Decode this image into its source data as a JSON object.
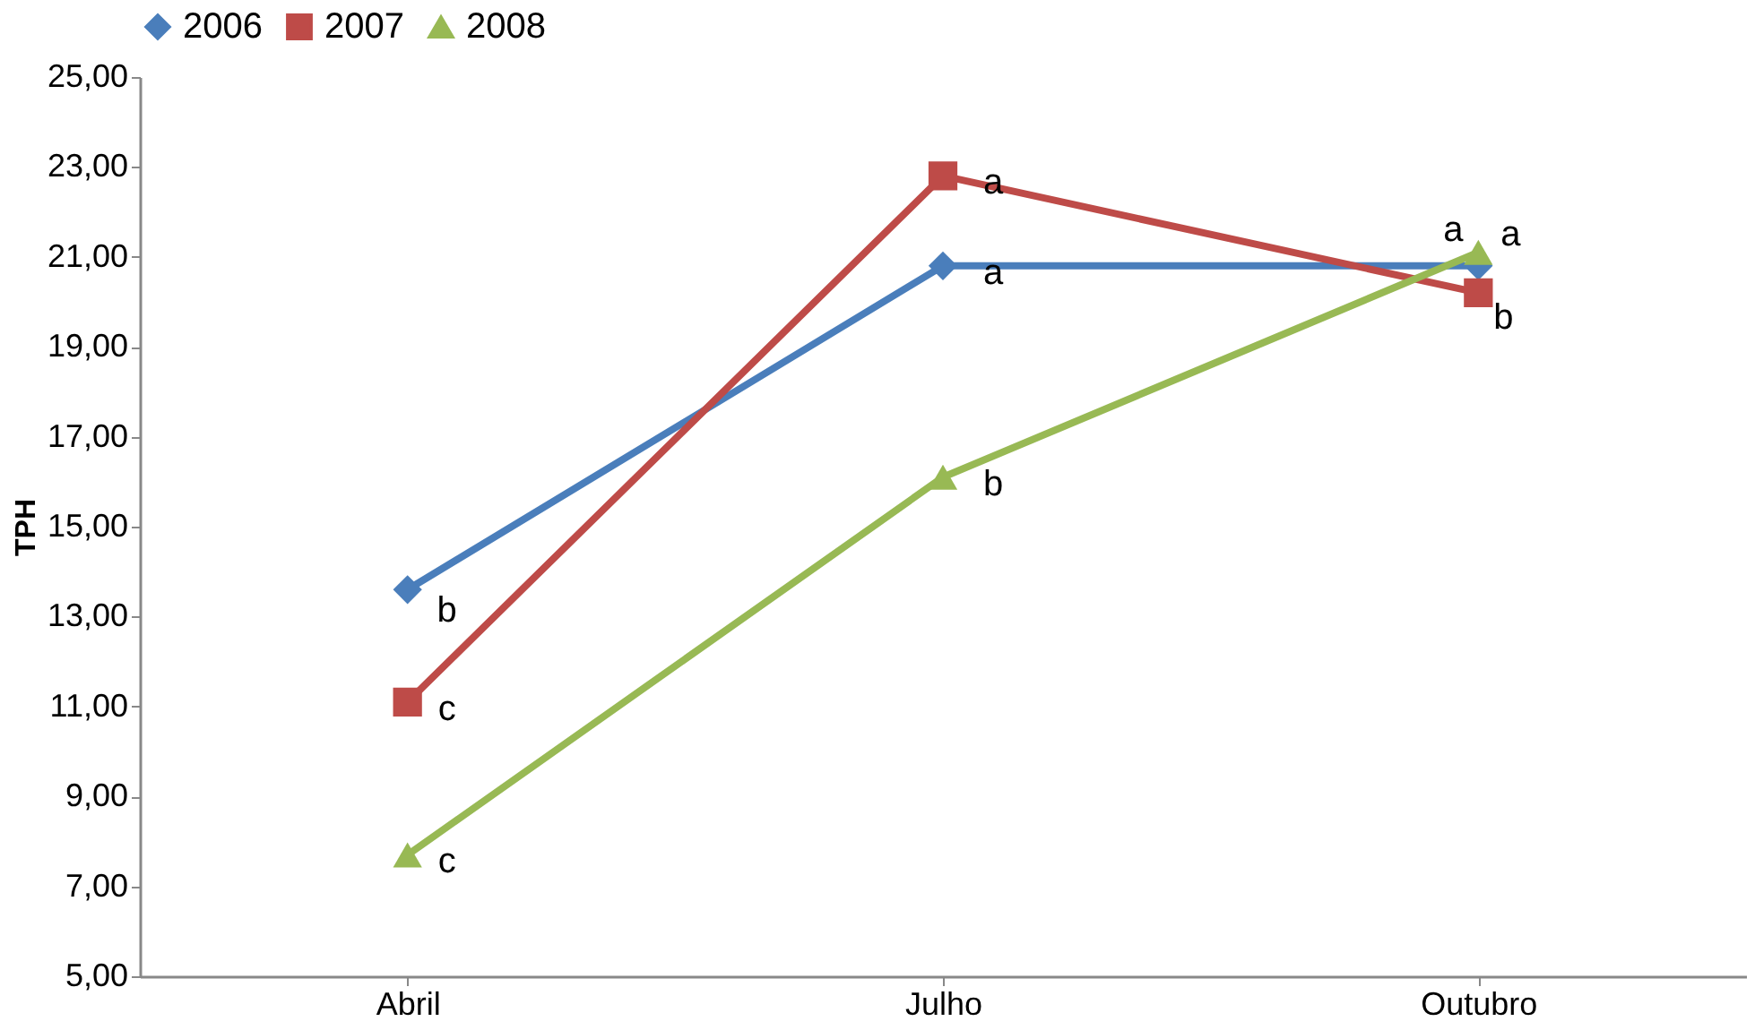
{
  "chart_data": {
    "type": "line",
    "ylabel": "TPH",
    "categories": [
      "Abril",
      "Julho",
      "Outubro"
    ],
    "series": [
      {
        "name": "2006",
        "color": "#4a7ebb",
        "marker": "diamond",
        "values": [
          13.6,
          20.8,
          20.8
        ]
      },
      {
        "name": "2007",
        "color": "#be4b48",
        "marker": "square",
        "values": [
          11.1,
          22.8,
          20.2
        ]
      },
      {
        "name": "2008",
        "color": "#98b954",
        "marker": "triangle",
        "values": [
          7.7,
          16.1,
          21.1
        ]
      }
    ],
    "ylim": [
      5,
      25
    ],
    "yticks": [
      {
        "value": 5,
        "label": "5,00"
      },
      {
        "value": 7,
        "label": "7,00"
      },
      {
        "value": 9,
        "label": "9,00"
      },
      {
        "value": 11,
        "label": "11,00"
      },
      {
        "value": 13,
        "label": "13,00"
      },
      {
        "value": 15,
        "label": "15,00"
      },
      {
        "value": 17,
        "label": "17,00"
      },
      {
        "value": 19,
        "label": "19,00"
      },
      {
        "value": 21,
        "label": "21,00"
      },
      {
        "value": 23,
        "label": "23,00"
      },
      {
        "value": 25,
        "label": "25,00"
      }
    ],
    "annotations": [
      {
        "text": "b",
        "x": "Abril",
        "y": 13.6
      },
      {
        "text": "c",
        "x": "Abril",
        "y": 11.1
      },
      {
        "text": "c",
        "x": "Abril",
        "y": 7.7
      },
      {
        "text": "a",
        "x": "Julho",
        "y": 20.8
      },
      {
        "text": "a",
        "x": "Julho",
        "y": 22.8
      },
      {
        "text": "b",
        "x": "Julho",
        "y": 16.1
      },
      {
        "text": "a",
        "x": "Outubro",
        "y": 20.8
      },
      {
        "text": "b",
        "x": "Outubro",
        "y": 20.2
      },
      {
        "text": "a",
        "x": "Outubro",
        "y": 21.1
      }
    ],
    "legend": "top",
    "grid": false,
    "line_style": "solid"
  }
}
